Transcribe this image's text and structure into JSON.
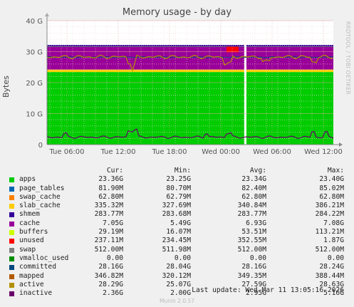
{
  "chart_data": {
    "type": "area",
    "title": "Memory usage - by day",
    "ylabel": "Bytes",
    "side_label": "RRDTOOL / TOBI OETIKER",
    "y_ticks": [
      "0",
      "10 G",
      "20 G",
      "30 G",
      "40 G"
    ],
    "ylim": [
      0,
      40
    ],
    "x_ticks": [
      "Tue 06:00",
      "Tue 12:00",
      "Tue 18:00",
      "Wed 00:00",
      "Wed 06:00",
      "Wed 12:00"
    ],
    "grid": true,
    "unit": "G",
    "series_approx": {
      "apps_top": 23.4,
      "cache_top": 31.5,
      "swap_top": 32.0,
      "active": 28.3,
      "committed": 28.2,
      "inactive": 2.4
    },
    "legend_header": {
      "cur": "Cur:",
      "min": "Min:",
      "avg": "Avg:",
      "max": "Max:"
    },
    "legend": [
      {
        "name": "apps",
        "color": "#00cc00",
        "cur": "23.36G",
        "min": "23.25G",
        "avg": "23.34G",
        "max": "23.40G"
      },
      {
        "name": "page_tables",
        "color": "#0066b3",
        "cur": "81.90M",
        "min": "80.70M",
        "avg": "82.40M",
        "max": "85.02M"
      },
      {
        "name": "swap_cache",
        "color": "#ff8000",
        "cur": "62.80M",
        "min": "62.79M",
        "avg": "62.80M",
        "max": "62.80M"
      },
      {
        "name": "slab_cache",
        "color": "#ffcc00",
        "cur": "335.32M",
        "min": "327.69M",
        "avg": "340.84M",
        "max": "386.21M"
      },
      {
        "name": "shmem",
        "color": "#330099",
        "cur": "283.77M",
        "min": "283.68M",
        "avg": "283.77M",
        "max": "284.22M"
      },
      {
        "name": "cache",
        "color": "#990099",
        "cur": "7.05G",
        "min": "5.49G",
        "avg": "6.93G",
        "max": "7.08G"
      },
      {
        "name": "buffers",
        "color": "#ccff00",
        "cur": "29.19M",
        "min": "16.07M",
        "avg": "53.51M",
        "max": "113.21M"
      },
      {
        "name": "unused",
        "color": "#ff0000",
        "cur": "237.11M",
        "min": "234.45M",
        "avg": "352.55M",
        "max": "1.87G"
      },
      {
        "name": "swap",
        "color": "#808080",
        "cur": "512.00M",
        "min": "511.98M",
        "avg": "512.00M",
        "max": "512.00M"
      },
      {
        "name": "vmalloc_used",
        "color": "#008f00",
        "cur": "0.00",
        "min": "0.00",
        "avg": "0.00",
        "max": "0.00"
      },
      {
        "name": "committed",
        "color": "#00487d",
        "cur": "28.16G",
        "min": "28.04G",
        "avg": "28.16G",
        "max": "28.24G"
      },
      {
        "name": "mapped",
        "color": "#b35a00",
        "cur": "346.82M",
        "min": "320.12M",
        "avg": "349.35M",
        "max": "388.44M"
      },
      {
        "name": "active",
        "color": "#b38f00",
        "cur": "28.29G",
        "min": "25.07G",
        "avg": "27.59G",
        "max": "28.63G"
      },
      {
        "name": "inactive",
        "color": "#6b006b",
        "cur": "2.36G",
        "min": "2.00G",
        "avg": "2.95G",
        "max": "5.16G"
      }
    ]
  },
  "footer": {
    "last_update": "Last update: Wed Mar 11 13:05:16 2026",
    "munin": "Munin 2.0.57"
  }
}
